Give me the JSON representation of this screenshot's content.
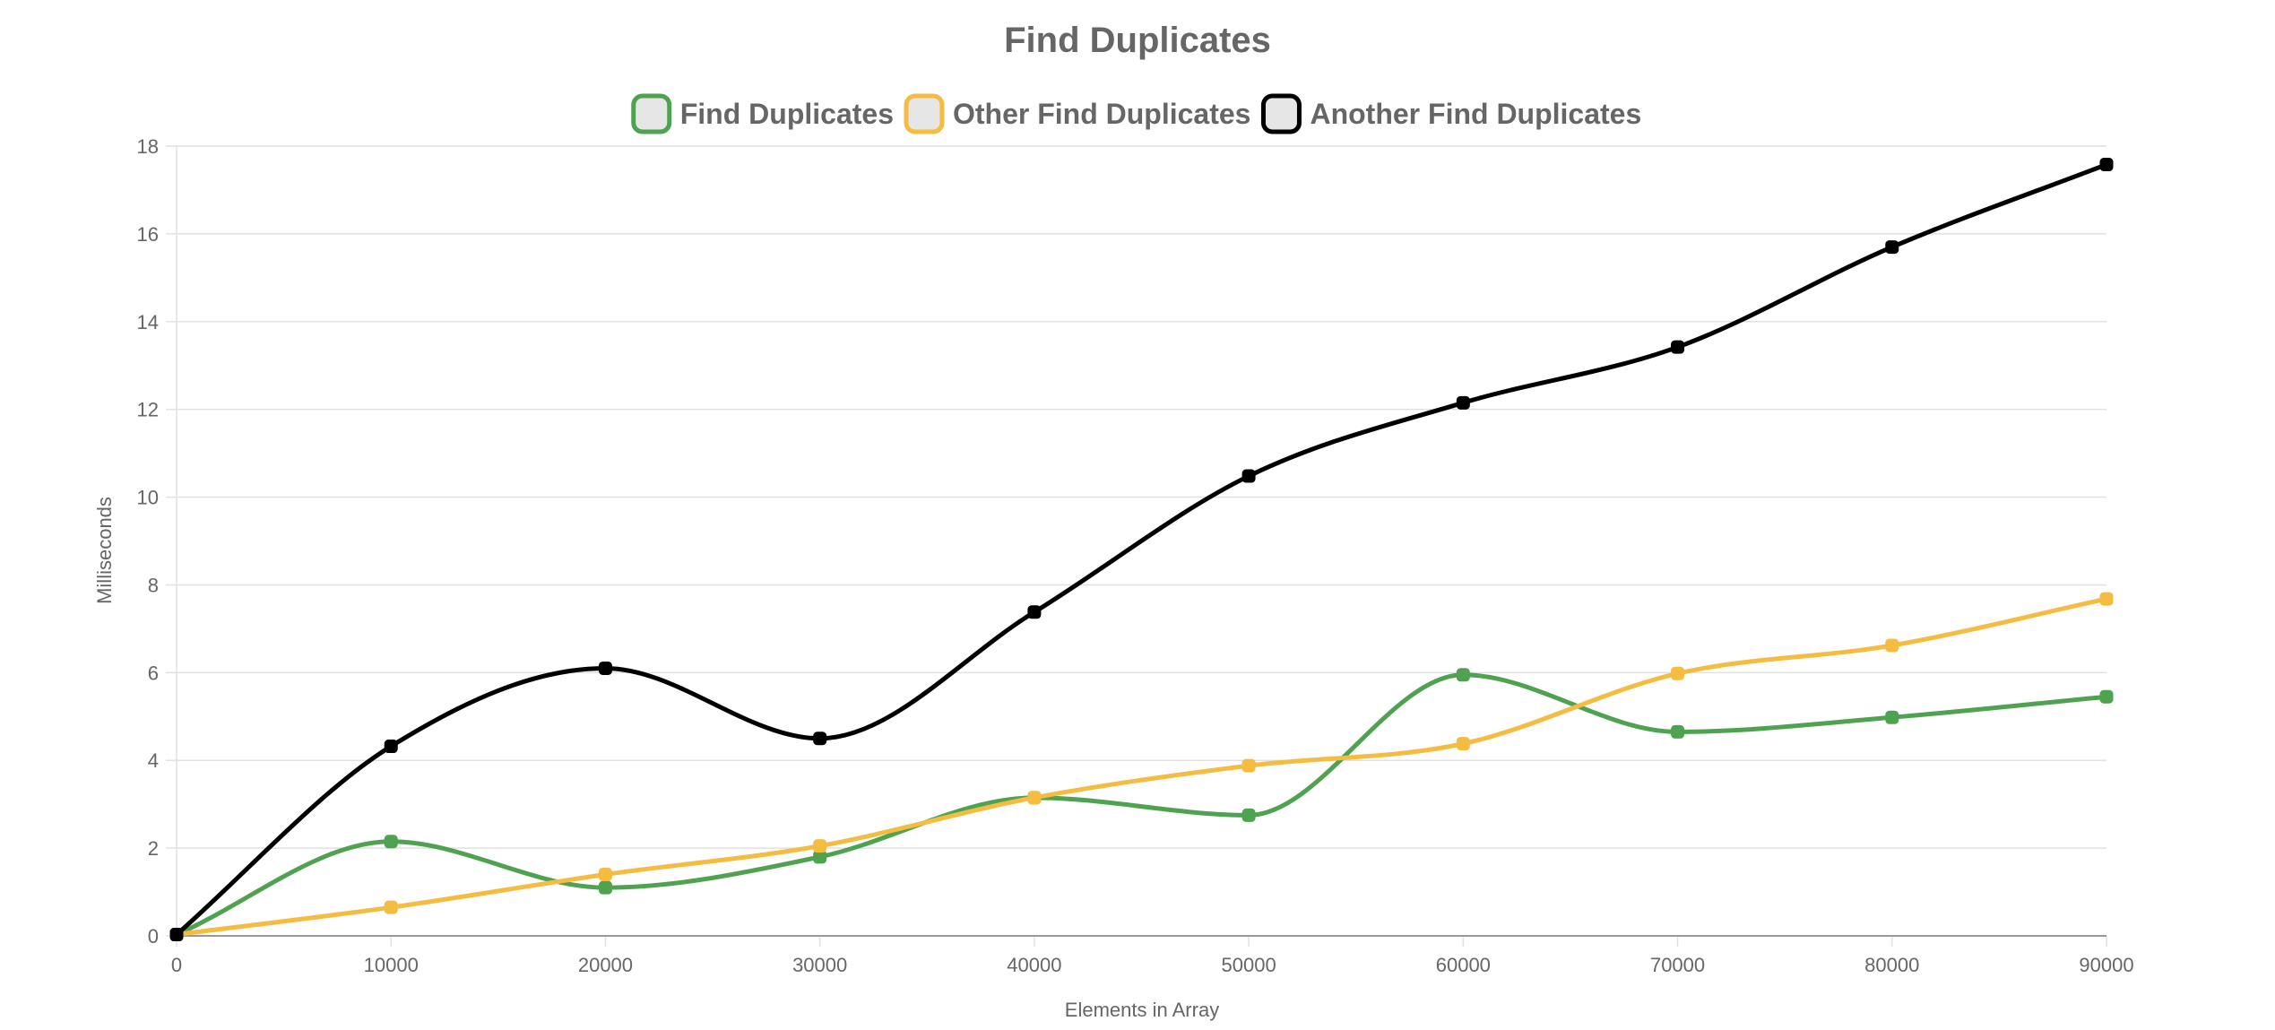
{
  "chart_data": {
    "type": "line",
    "title": "Find Duplicates",
    "xlabel": "Elements in Array",
    "ylabel": "Milliseconds",
    "x": [
      0,
      10000,
      20000,
      30000,
      40000,
      50000,
      60000,
      70000,
      80000,
      90000
    ],
    "x_tick_labels": [
      "0",
      "10000",
      "20000",
      "30000",
      "40000",
      "50000",
      "60000",
      "70000",
      "80000",
      "90000"
    ],
    "y_tick_labels": [
      "0",
      "2",
      "4",
      "6",
      "8",
      "10",
      "12",
      "14",
      "16",
      "18"
    ],
    "ylim": [
      0,
      18
    ],
    "grid": true,
    "legend_position": "top",
    "smooth": true,
    "series": [
      {
        "name": "Find Duplicates",
        "color": "#4fa24f",
        "values": [
          0.03,
          2.15,
          1.1,
          1.8,
          3.15,
          2.75,
          5.95,
          4.65,
          4.98,
          5.45
        ]
      },
      {
        "name": "Other Find Duplicates",
        "color": "#f4bd42",
        "values": [
          0.03,
          0.65,
          1.4,
          2.05,
          3.15,
          3.88,
          4.38,
          5.98,
          6.62,
          7.68
        ]
      },
      {
        "name": "Another Find Duplicates",
        "color": "#000000",
        "values": [
          0.03,
          4.32,
          6.1,
          4.5,
          7.38,
          10.48,
          12.15,
          13.42,
          15.7,
          17.58
        ]
      }
    ]
  }
}
